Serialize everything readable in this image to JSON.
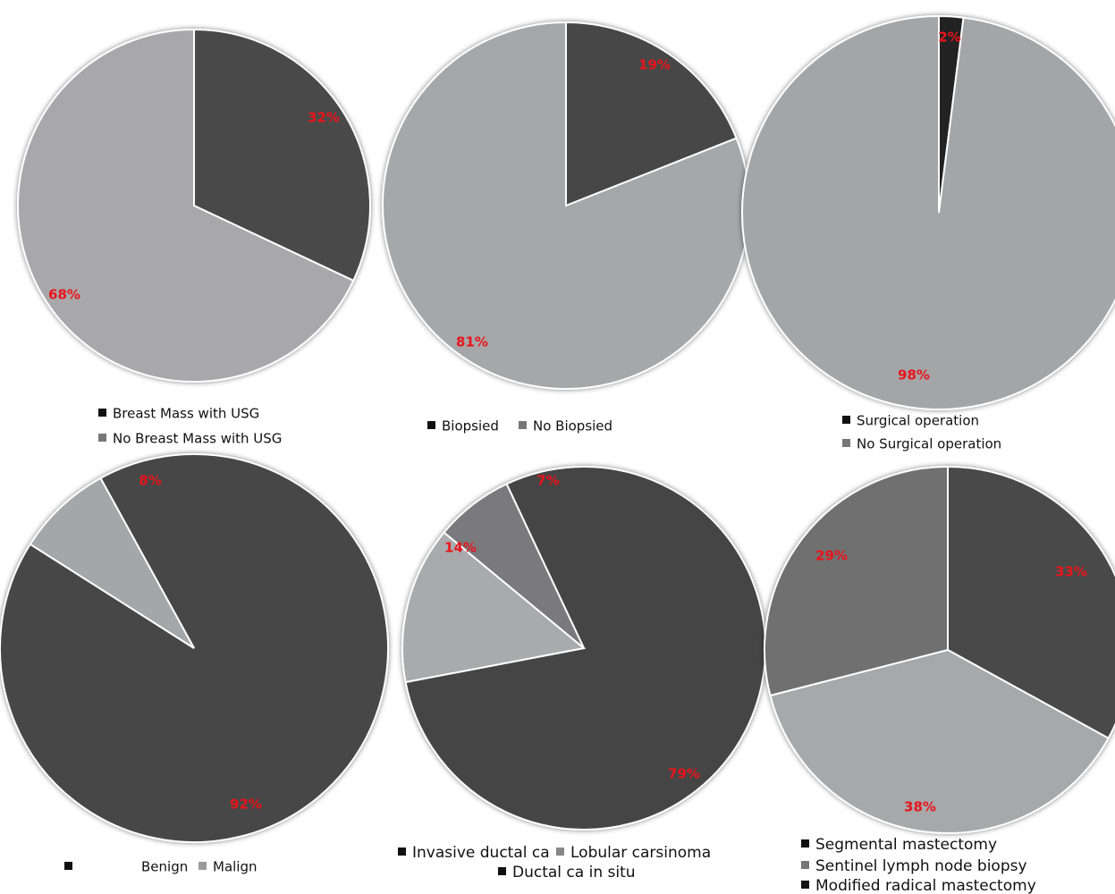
{
  "chart_data": [
    {
      "type": "pie",
      "categories": [
        "Breast Mass with USG",
        "No Breast Mass with USG"
      ],
      "values": [
        32,
        68
      ],
      "labels": [
        "32%",
        "68%"
      ],
      "colors": [
        "#4a4a4a",
        "#a8a8aa"
      ],
      "legend_colors": [
        "#111111",
        "#777777"
      ],
      "legend": "bottom"
    },
    {
      "type": "pie",
      "categories": [
        "Biopsied",
        "No Biopsied"
      ],
      "values": [
        19,
        81
      ],
      "labels": [
        "19%",
        "81%"
      ],
      "colors": [
        "#474747",
        "#a6a7a9"
      ],
      "legend_colors": [
        "#111111",
        "#777777"
      ],
      "legend": "bottom"
    },
    {
      "type": "pie",
      "categories": [
        "Surgical operation",
        "No Surgical operation"
      ],
      "values": [
        2,
        98
      ],
      "labels": [
        "2%",
        "98%"
      ],
      "colors": [
        "#222222",
        "#a4a5a7"
      ],
      "legend_colors": [
        "#111111",
        "#777777"
      ],
      "legend": "bottom"
    },
    {
      "type": "pie",
      "categories": [
        "Benign",
        "Malign"
      ],
      "values": [
        92,
        8
      ],
      "labels": [
        "92%",
        "8%"
      ],
      "colors": [
        "#474747",
        "#a5a6a8"
      ],
      "legend_colors": [
        "#111111",
        "#999999"
      ],
      "legend": "bottom"
    },
    {
      "type": "pie",
      "categories": [
        "Invasive ductal ca",
        "Lobular carsinoma",
        "Ductal ca in situ"
      ],
      "values": [
        79,
        14,
        7
      ],
      "labels": [
        "79%",
        "14%",
        "7%"
      ],
      "colors": [
        "#454545",
        "#a9aaac",
        "#7a7a7c"
      ],
      "legend_colors": [
        "#111111",
        "#888888",
        "#111111"
      ],
      "legend": "bottom"
    },
    {
      "type": "pie",
      "categories": [
        "Segmental mastectomy",
        "Sentinel lymph node biopsy",
        "Modified radical mastectomy"
      ],
      "values": [
        33,
        38,
        29
      ],
      "labels": [
        "33%",
        "38%",
        "29%"
      ],
      "colors": [
        "#4a4a4a",
        "#a7a8aa",
        "#6f6f71"
      ],
      "legend_colors": [
        "#111111",
        "#777777",
        "#111111"
      ],
      "legend": "bottom"
    }
  ]
}
